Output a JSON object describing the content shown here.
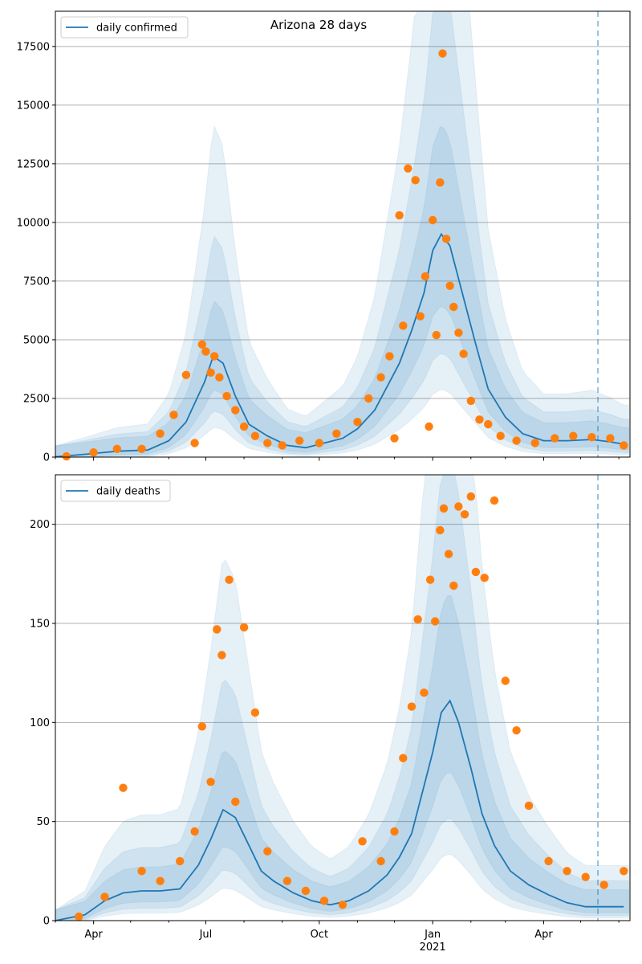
{
  "chart_data": [
    {
      "type": "line",
      "title": "Arizona 28 days",
      "xlabel": "",
      "ylabel": "",
      "ylim": [
        0,
        19000
      ],
      "yticks": [
        0,
        2500,
        5000,
        7500,
        10000,
        12500,
        15000,
        17500
      ],
      "grid": "horizontal",
      "legend_position": "top-left",
      "series": [
        {
          "name": "daily confirmed",
          "color": "#1f77b4",
          "x": [
            "2020-03-01",
            "2020-03-25",
            "2020-04-20",
            "2020-05-15",
            "2020-06-01",
            "2020-06-15",
            "2020-06-30",
            "2020-07-07",
            "2020-07-15",
            "2020-07-25",
            "2020-08-05",
            "2020-08-20",
            "2020-09-05",
            "2020-09-20",
            "2020-10-05",
            "2020-10-20",
            "2020-11-01",
            "2020-11-15",
            "2020-11-25",
            "2020-12-05",
            "2020-12-15",
            "2020-12-25",
            "2021-01-01",
            "2021-01-08",
            "2021-01-15",
            "2021-01-25",
            "2021-02-05",
            "2021-02-15",
            "2021-03-01",
            "2021-03-15",
            "2021-04-01",
            "2021-04-20",
            "2021-05-10",
            "2021-05-25",
            "2021-06-05"
          ],
          "y": [
            10,
            120,
            250,
            300,
            700,
            1500,
            3200,
            4300,
            4000,
            2600,
            1400,
            900,
            500,
            400,
            600,
            800,
            1200,
            2000,
            3000,
            4000,
            5400,
            7000,
            8800,
            9500,
            9000,
            7000,
            4800,
            2900,
            1700,
            1000,
            700,
            700,
            750,
            650,
            550
          ]
        }
      ],
      "observed_daily_confirmed": {
        "color": "#ff7f0e",
        "x": [
          "2020-03-10",
          "2020-04-01",
          "2020-04-20",
          "2020-05-10",
          "2020-05-25",
          "2020-06-05",
          "2020-06-15",
          "2020-06-22",
          "2020-06-28",
          "2020-07-01",
          "2020-07-05",
          "2020-07-08",
          "2020-07-12",
          "2020-07-18",
          "2020-07-25",
          "2020-08-01",
          "2020-08-10",
          "2020-08-20",
          "2020-09-01",
          "2020-09-15",
          "2020-10-01",
          "2020-10-15",
          "2020-11-01",
          "2020-11-10",
          "2020-11-20",
          "2020-11-27",
          "2020-12-01",
          "2020-12-05",
          "2020-12-08",
          "2020-12-12",
          "2020-12-18",
          "2020-12-22",
          "2020-12-26",
          "2020-12-29",
          "2021-01-01",
          "2021-01-04",
          "2021-01-07",
          "2021-01-09",
          "2021-01-12",
          "2021-01-15",
          "2021-01-18",
          "2021-01-22",
          "2021-01-26",
          "2021-02-01",
          "2021-02-08",
          "2021-02-15",
          "2021-02-25",
          "2021-03-10",
          "2021-03-25",
          "2021-04-10",
          "2021-04-25",
          "2021-05-10",
          "2021-05-25",
          "2021-06-05"
        ],
        "y": [
          30,
          200,
          350,
          350,
          1000,
          1800,
          3500,
          600,
          4800,
          4500,
          3600,
          4300,
          3400,
          2600,
          2000,
          1300,
          900,
          600,
          500,
          700,
          600,
          1000,
          1500,
          2500,
          3400,
          4300,
          800,
          10300,
          5600,
          12300,
          11800,
          6000,
          7700,
          1300,
          10100,
          5200,
          11700,
          17200,
          9300,
          7300,
          6400,
          5300,
          4400,
          2400,
          1600,
          1400,
          900,
          700,
          600,
          800,
          900,
          850,
          800,
          500
        ]
      },
      "bands": [
        "mean ± 1 sd",
        "mean ± 2 sd",
        "mean ± 3 sd"
      ],
      "vline_x": "2021-05-15",
      "vline_style": "dashed"
    },
    {
      "type": "line",
      "title": "",
      "xlabel": "",
      "ylabel": "",
      "ylim": [
        0,
        225
      ],
      "yticks": [
        0,
        50,
        100,
        150,
        200
      ],
      "grid": "horizontal",
      "legend_position": "top-left",
      "xticks": [
        "Apr",
        "Jul",
        "Oct",
        "Jan",
        "Apr"
      ],
      "xtick_year": "2021",
      "series": [
        {
          "name": "daily deaths",
          "color": "#1f77b4",
          "x": [
            "2020-03-01",
            "2020-03-25",
            "2020-04-10",
            "2020-04-25",
            "2020-05-10",
            "2020-05-25",
            "2020-06-10",
            "2020-06-25",
            "2020-07-05",
            "2020-07-15",
            "2020-07-25",
            "2020-08-05",
            "2020-08-15",
            "2020-08-25",
            "2020-09-10",
            "2020-09-25",
            "2020-10-10",
            "2020-10-25",
            "2020-11-10",
            "2020-11-25",
            "2020-12-05",
            "2020-12-15",
            "2020-12-25",
            "2021-01-01",
            "2021-01-08",
            "2021-01-15",
            "2021-01-22",
            "2021-02-01",
            "2021-02-10",
            "2021-02-20",
            "2021-03-05",
            "2021-03-20",
            "2021-04-05",
            "2021-04-20",
            "2021-05-05",
            "2021-05-20",
            "2021-06-05"
          ],
          "y": [
            0,
            3,
            10,
            14,
            15,
            15,
            16,
            28,
            41,
            56,
            52,
            38,
            25,
            20,
            14,
            10,
            8,
            10,
            15,
            23,
            32,
            44,
            68,
            85,
            105,
            111,
            100,
            77,
            54,
            38,
            25,
            18,
            13,
            9,
            7,
            7,
            7
          ]
        }
      ],
      "observed_daily_deaths": {
        "color": "#ff7f0e",
        "x": [
          "2020-03-20",
          "2020-04-10",
          "2020-04-25",
          "2020-05-10",
          "2020-05-25",
          "2020-06-10",
          "2020-06-22",
          "2020-06-28",
          "2020-07-05",
          "2020-07-10",
          "2020-07-14",
          "2020-07-20",
          "2020-07-25",
          "2020-08-01",
          "2020-08-10",
          "2020-08-20",
          "2020-09-05",
          "2020-09-20",
          "2020-10-05",
          "2020-10-20",
          "2020-11-05",
          "2020-11-20",
          "2020-12-01",
          "2020-12-08",
          "2020-12-15",
          "2020-12-20",
          "2020-12-25",
          "2020-12-30",
          "2021-01-03",
          "2021-01-07",
          "2021-01-10",
          "2021-01-14",
          "2021-01-18",
          "2021-01-22",
          "2021-01-27",
          "2021-02-01",
          "2021-02-05",
          "2021-02-12",
          "2021-02-20",
          "2021-03-01",
          "2021-03-10",
          "2021-03-20",
          "2021-04-05",
          "2021-04-20",
          "2021-05-05",
          "2021-05-20",
          "2021-06-05"
        ],
        "y": [
          2,
          12,
          67,
          25,
          20,
          30,
          45,
          98,
          70,
          147,
          134,
          172,
          60,
          148,
          105,
          35,
          20,
          15,
          10,
          8,
          40,
          30,
          45,
          82,
          108,
          152,
          115,
          172,
          151,
          197,
          208,
          185,
          169,
          209,
          205,
          214,
          176,
          173,
          212,
          121,
          96,
          58,
          30,
          25,
          22,
          18,
          25
        ]
      },
      "bands": [
        "mean ± 1 sd",
        "mean ± 2 sd",
        "mean ± 3 sd"
      ],
      "vline_x": "2021-05-15",
      "vline_style": "dashed"
    }
  ]
}
